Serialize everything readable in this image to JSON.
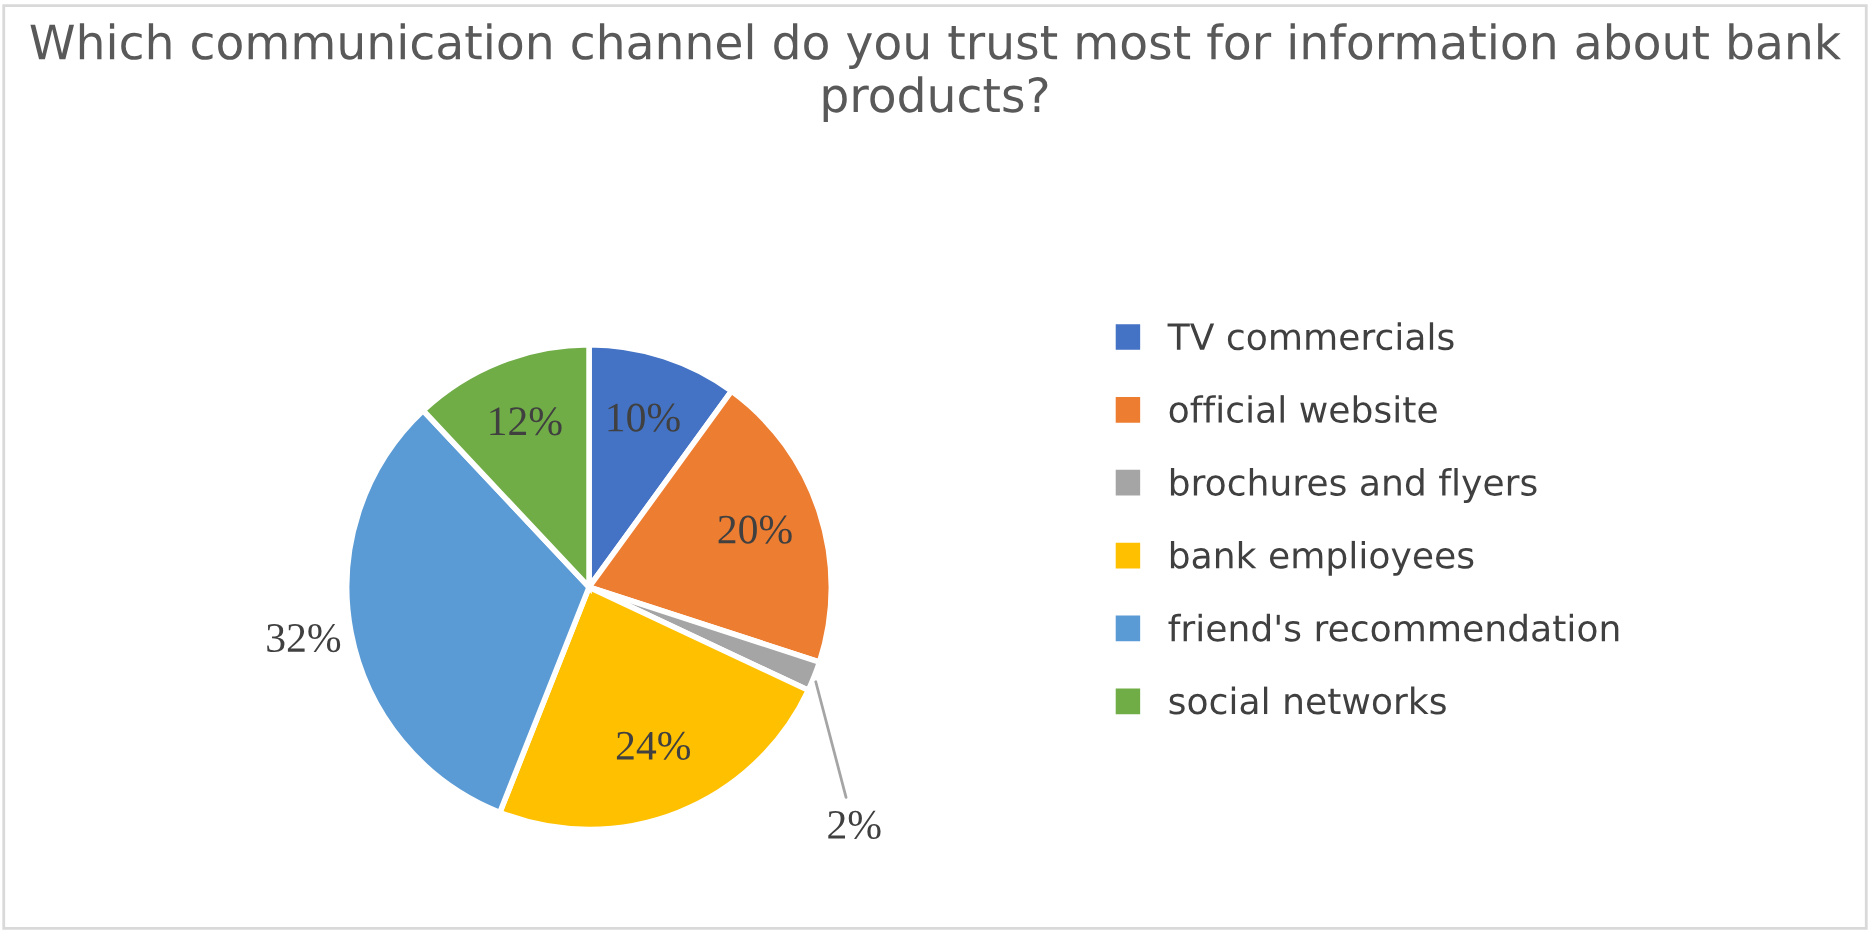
{
  "chart_data": {
    "type": "pie",
    "title": "Which communication channel do you trust most for information about bank products?",
    "categories": [
      "TV commercials",
      "official website",
      "brochures and flyers",
      "bank emplioyees",
      "friend's recommendation",
      "social networks"
    ],
    "values": [
      10,
      20,
      2,
      24,
      32,
      12
    ],
    "colors": [
      "#4472c4",
      "#ed7d31",
      "#a5a5a5",
      "#ffc000",
      "#5b9bd5",
      "#70ad47"
    ],
    "value_labels": [
      "10%",
      "20%",
      "2%",
      "24%",
      "32%",
      "12%"
    ],
    "legend": "right"
  }
}
